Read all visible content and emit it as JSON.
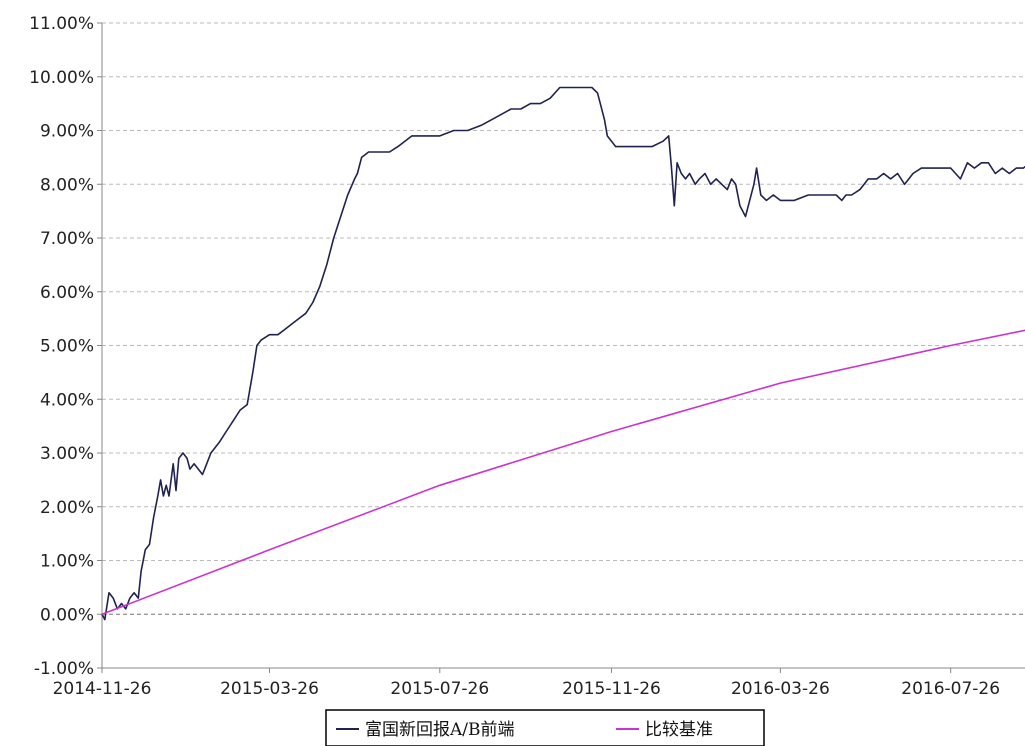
{
  "chart_data": {
    "type": "line",
    "title": "",
    "xlabel": "",
    "ylabel": "",
    "x_ticks": [
      "2014-11-26",
      "2015-03-26",
      "2015-07-26",
      "2015-11-26",
      "2016-03-26",
      "2016-07-26"
    ],
    "x_range": [
      "2014-11-26",
      "2016-09-30"
    ],
    "y_ticks": [
      "-1.00%",
      "0.00%",
      "1.00%",
      "2.00%",
      "3.00%",
      "4.00%",
      "5.00%",
      "6.00%",
      "7.00%",
      "8.00%",
      "9.00%",
      "10.00%",
      "11.00%"
    ],
    "ylim": [
      -1,
      11
    ],
    "y_unit": "%",
    "grid": "horizontal dashed",
    "legend_position": "bottom-center",
    "series": [
      {
        "name": "富国新回报A/B前端",
        "color": "#1f2350",
        "points": [
          [
            "2014-11-26",
            0.0
          ],
          [
            "2014-11-28",
            -0.1
          ],
          [
            "2014-12-01",
            0.4
          ],
          [
            "2014-12-04",
            0.3
          ],
          [
            "2014-12-07",
            0.1
          ],
          [
            "2014-12-10",
            0.2
          ],
          [
            "2014-12-13",
            0.1
          ],
          [
            "2014-12-16",
            0.3
          ],
          [
            "2014-12-19",
            0.4
          ],
          [
            "2014-12-22",
            0.3
          ],
          [
            "2014-12-24",
            0.8
          ],
          [
            "2014-12-27",
            1.2
          ],
          [
            "2014-12-30",
            1.3
          ],
          [
            "2015-01-02",
            1.8
          ],
          [
            "2015-01-05",
            2.2
          ],
          [
            "2015-01-07",
            2.5
          ],
          [
            "2015-01-09",
            2.2
          ],
          [
            "2015-01-11",
            2.4
          ],
          [
            "2015-01-13",
            2.2
          ],
          [
            "2015-01-16",
            2.8
          ],
          [
            "2015-01-18",
            2.3
          ],
          [
            "2015-01-20",
            2.9
          ],
          [
            "2015-01-23",
            3.0
          ],
          [
            "2015-01-26",
            2.9
          ],
          [
            "2015-01-28",
            2.7
          ],
          [
            "2015-01-31",
            2.8
          ],
          [
            "2015-02-03",
            2.7
          ],
          [
            "2015-02-06",
            2.6
          ],
          [
            "2015-02-09",
            2.8
          ],
          [
            "2015-02-12",
            3.0
          ],
          [
            "2015-02-15",
            3.1
          ],
          [
            "2015-02-18",
            3.2
          ],
          [
            "2015-02-23",
            3.4
          ],
          [
            "2015-02-28",
            3.6
          ],
          [
            "2015-03-05",
            3.8
          ],
          [
            "2015-03-10",
            3.9
          ],
          [
            "2015-03-14",
            4.5
          ],
          [
            "2015-03-17",
            5.0
          ],
          [
            "2015-03-20",
            5.1
          ],
          [
            "2015-03-26",
            5.2
          ],
          [
            "2015-04-01",
            5.2
          ],
          [
            "2015-04-06",
            5.3
          ],
          [
            "2015-04-11",
            5.4
          ],
          [
            "2015-04-16",
            5.5
          ],
          [
            "2015-04-21",
            5.6
          ],
          [
            "2015-04-26",
            5.8
          ],
          [
            "2015-05-01",
            6.1
          ],
          [
            "2015-05-06",
            6.5
          ],
          [
            "2015-05-11",
            7.0
          ],
          [
            "2015-05-16",
            7.4
          ],
          [
            "2015-05-21",
            7.8
          ],
          [
            "2015-05-26",
            8.1
          ],
          [
            "2015-05-28",
            8.2
          ],
          [
            "2015-05-31",
            8.5
          ],
          [
            "2015-06-05",
            8.6
          ],
          [
            "2015-06-12",
            8.6
          ],
          [
            "2015-06-20",
            8.6
          ],
          [
            "2015-06-26",
            8.7
          ],
          [
            "2015-07-01",
            8.8
          ],
          [
            "2015-07-06",
            8.9
          ],
          [
            "2015-07-12",
            8.9
          ],
          [
            "2015-07-20",
            8.9
          ],
          [
            "2015-07-26",
            8.9
          ],
          [
            "2015-08-05",
            9.0
          ],
          [
            "2015-08-15",
            9.0
          ],
          [
            "2015-08-25",
            9.1
          ],
          [
            "2015-09-01",
            9.2
          ],
          [
            "2015-09-08",
            9.3
          ],
          [
            "2015-09-15",
            9.4
          ],
          [
            "2015-09-22",
            9.4
          ],
          [
            "2015-09-29",
            9.5
          ],
          [
            "2015-10-06",
            9.5
          ],
          [
            "2015-10-13",
            9.6
          ],
          [
            "2015-10-20",
            9.8
          ],
          [
            "2015-10-26",
            9.8
          ],
          [
            "2015-11-05",
            9.8
          ],
          [
            "2015-11-12",
            9.8
          ],
          [
            "2015-11-16",
            9.7
          ],
          [
            "2015-11-18",
            9.5
          ],
          [
            "2015-11-21",
            9.2
          ],
          [
            "2015-11-23",
            8.9
          ],
          [
            "2015-11-26",
            8.8
          ],
          [
            "2015-11-29",
            8.7
          ],
          [
            "2015-12-06",
            8.7
          ],
          [
            "2015-12-15",
            8.7
          ],
          [
            "2015-12-25",
            8.7
          ],
          [
            "2016-01-02",
            8.8
          ],
          [
            "2016-01-06",
            8.9
          ],
          [
            "2016-01-08",
            8.3
          ],
          [
            "2016-01-10",
            7.6
          ],
          [
            "2016-01-12",
            8.4
          ],
          [
            "2016-01-15",
            8.2
          ],
          [
            "2016-01-18",
            8.1
          ],
          [
            "2016-01-21",
            8.2
          ],
          [
            "2016-01-25",
            8.0
          ],
          [
            "2016-01-28",
            8.1
          ],
          [
            "2016-02-01",
            8.2
          ],
          [
            "2016-02-05",
            8.0
          ],
          [
            "2016-02-09",
            8.1
          ],
          [
            "2016-02-13",
            8.0
          ],
          [
            "2016-02-17",
            7.9
          ],
          [
            "2016-02-20",
            8.1
          ],
          [
            "2016-02-23",
            8.0
          ],
          [
            "2016-02-26",
            7.6
          ],
          [
            "2016-03-01",
            7.4
          ],
          [
            "2016-03-04",
            7.7
          ],
          [
            "2016-03-07",
            8.0
          ],
          [
            "2016-03-09",
            8.3
          ],
          [
            "2016-03-12",
            7.8
          ],
          [
            "2016-03-16",
            7.7
          ],
          [
            "2016-03-21",
            7.8
          ],
          [
            "2016-03-26",
            7.7
          ],
          [
            "2016-04-05",
            7.7
          ],
          [
            "2016-04-15",
            7.8
          ],
          [
            "2016-04-25",
            7.8
          ],
          [
            "2016-05-05",
            7.8
          ],
          [
            "2016-05-09",
            7.7
          ],
          [
            "2016-05-12",
            7.8
          ],
          [
            "2016-05-16",
            7.8
          ],
          [
            "2016-05-22",
            7.9
          ],
          [
            "2016-05-28",
            8.1
          ],
          [
            "2016-06-03",
            8.1
          ],
          [
            "2016-06-08",
            8.2
          ],
          [
            "2016-06-13",
            8.1
          ],
          [
            "2016-06-18",
            8.2
          ],
          [
            "2016-06-23",
            8.0
          ],
          [
            "2016-06-29",
            8.2
          ],
          [
            "2016-07-05",
            8.3
          ],
          [
            "2016-07-12",
            8.3
          ],
          [
            "2016-07-19",
            8.3
          ],
          [
            "2016-07-26",
            8.3
          ],
          [
            "2016-08-02",
            8.1
          ],
          [
            "2016-08-07",
            8.4
          ],
          [
            "2016-08-12",
            8.3
          ],
          [
            "2016-08-17",
            8.4
          ],
          [
            "2016-08-22",
            8.4
          ],
          [
            "2016-08-27",
            8.2
          ],
          [
            "2016-09-01",
            8.3
          ],
          [
            "2016-09-06",
            8.2
          ],
          [
            "2016-09-11",
            8.3
          ],
          [
            "2016-09-16",
            8.3
          ],
          [
            "2016-09-21",
            8.4
          ],
          [
            "2016-09-26",
            8.3
          ],
          [
            "2016-09-30",
            8.2
          ]
        ]
      },
      {
        "name": "比较基准",
        "color": "#cc33cc",
        "points": [
          [
            "2014-11-26",
            0.0
          ],
          [
            "2015-03-26",
            1.2
          ],
          [
            "2015-07-26",
            2.4
          ],
          [
            "2015-11-26",
            3.4
          ],
          [
            "2016-03-26",
            4.3
          ],
          [
            "2016-07-26",
            5.0
          ],
          [
            "2016-09-30",
            5.35
          ]
        ]
      }
    ]
  }
}
